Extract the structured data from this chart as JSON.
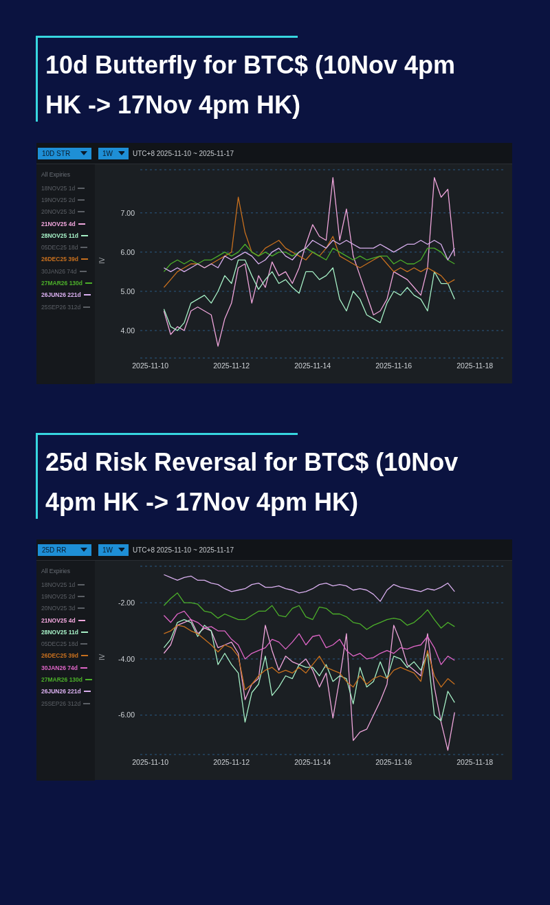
{
  "chart_data": [
    {
      "type": "line",
      "title": "10d Butterfly for BTC$ (10Nov 4pm HK -> 17Nov 4pm HK)",
      "ylabel": "IV",
      "legend_title": "All Expiries",
      "legend": "left",
      "grid": "y",
      "marker": "none",
      "line_style": "solid",
      "annotations": [
        "10D STR",
        "1W",
        "UTC+8 2025-11-10 ~ 2025-11-17"
      ],
      "x": [
        "2025-11-10T08:00",
        "2025-11-10T12:00",
        "2025-11-10T16:00",
        "2025-11-10T20:00",
        "2025-11-11T00:00",
        "2025-11-11T04:00",
        "2025-11-11T08:00",
        "2025-11-11T12:00",
        "2025-11-11T16:00",
        "2025-11-11T20:00",
        "2025-11-12T00:00",
        "2025-11-12T04:00",
        "2025-11-12T08:00",
        "2025-11-12T12:00",
        "2025-11-12T16:00",
        "2025-11-12T20:00",
        "2025-11-13T00:00",
        "2025-11-13T04:00",
        "2025-11-13T08:00",
        "2025-11-13T12:00",
        "2025-11-13T16:00",
        "2025-11-13T20:00",
        "2025-11-14T00:00",
        "2025-11-14T04:00",
        "2025-11-14T08:00",
        "2025-11-14T12:00",
        "2025-11-14T16:00",
        "2025-11-14T20:00",
        "2025-11-15T00:00",
        "2025-11-15T04:00",
        "2025-11-15T08:00",
        "2025-11-15T12:00",
        "2025-11-15T16:00",
        "2025-11-15T20:00",
        "2025-11-16T00:00",
        "2025-11-16T04:00",
        "2025-11-16T08:00",
        "2025-11-16T12:00",
        "2025-11-16T16:00",
        "2025-11-16T20:00",
        "2025-11-17T00:00",
        "2025-11-17T04:00",
        "2025-11-17T08:00",
        "2025-11-17T12:00"
      ],
      "xlim": [
        "2025-11-09T18:00",
        "2025-11-18T18:00"
      ],
      "xticks": [
        "2025-11-10",
        "2025-11-12",
        "2025-11-14",
        "2025-11-16",
        "2025-11-18"
      ],
      "ylim": [
        3.3,
        8.1
      ],
      "yticks": [
        {
          "value": 4,
          "label": "4.00"
        },
        {
          "value": 5,
          "label": "5.00"
        },
        {
          "value": 6,
          "label": "6.00"
        },
        {
          "value": 7,
          "label": "7.00"
        }
      ],
      "series": [
        {
          "name": "18NOV25 1d",
          "color": "#5c6066",
          "values": [
            null,
            null,
            null,
            null,
            null,
            null,
            null,
            null,
            null,
            null,
            null,
            null,
            null,
            null,
            null,
            null,
            null,
            null,
            null,
            null,
            null,
            null,
            null,
            null,
            null,
            null,
            null,
            null,
            null,
            null,
            null,
            null,
            null,
            null,
            null,
            null,
            null,
            null,
            null,
            null,
            null,
            null,
            null,
            null
          ]
        },
        {
          "name": "19NOV25 2d",
          "color": "#5c6066",
          "values": [
            null,
            null,
            null,
            null,
            null,
            null,
            null,
            null,
            null,
            null,
            null,
            null,
            null,
            null,
            null,
            null,
            null,
            null,
            null,
            null,
            null,
            null,
            null,
            null,
            null,
            null,
            null,
            null,
            null,
            null,
            null,
            null,
            null,
            null,
            null,
            null,
            null,
            null,
            null,
            null,
            null,
            null,
            null,
            null
          ]
        },
        {
          "name": "20NOV25 3d",
          "color": "#5c6066",
          "values": [
            null,
            null,
            null,
            null,
            null,
            null,
            null,
            null,
            null,
            null,
            null,
            null,
            null,
            null,
            null,
            null,
            null,
            null,
            null,
            null,
            null,
            null,
            null,
            null,
            null,
            null,
            null,
            null,
            null,
            null,
            null,
            null,
            null,
            null,
            null,
            null,
            null,
            null,
            null,
            null,
            null,
            null,
            null,
            null
          ]
        },
        {
          "name": "21NOV25 4d",
          "color": "#f0a6dc",
          "values": [
            4.5,
            3.9,
            4.1,
            4.0,
            4.5,
            4.6,
            4.5,
            4.4,
            3.6,
            4.3,
            4.7,
            5.6,
            5.7,
            4.7,
            5.4,
            5.1,
            5.75,
            5.4,
            5.5,
            5.2,
            5.6,
            6.2,
            6.7,
            6.4,
            6.3,
            7.9,
            6.3,
            7.1,
            5.9,
            5.4,
            4.9,
            4.4,
            4.5,
            4.8,
            5.5,
            5.4,
            5.3,
            5.1,
            4.9,
            5.6,
            7.9,
            7.4,
            7.6,
            5.9
          ]
        },
        {
          "name": "28NOV25 11d",
          "color": "#a6f0c6",
          "values": [
            4.55,
            4.1,
            4.0,
            4.2,
            4.7,
            4.8,
            4.9,
            4.7,
            5.0,
            5.4,
            5.2,
            5.8,
            5.8,
            5.4,
            5.05,
            5.3,
            5.5,
            5.2,
            5.3,
            5.1,
            4.95,
            5.5,
            5.5,
            5.3,
            5.4,
            5.6,
            4.8,
            4.5,
            5.0,
            4.8,
            4.4,
            4.3,
            4.2,
            4.7,
            5.0,
            4.9,
            5.1,
            4.9,
            4.8,
            4.5,
            5.5,
            5.2,
            5.2,
            4.8
          ]
        },
        {
          "name": "05DEC25 18d",
          "color": "#5c6066",
          "values": [
            null,
            null,
            null,
            null,
            null,
            null,
            null,
            null,
            null,
            null,
            null,
            null,
            null,
            null,
            null,
            null,
            null,
            null,
            null,
            null,
            null,
            null,
            null,
            null,
            null,
            null,
            null,
            null,
            null,
            null,
            null,
            null,
            null,
            null,
            null,
            null,
            null,
            null,
            null,
            null,
            null,
            null,
            null,
            null
          ]
        },
        {
          "name": "26DEC25 39d",
          "color": "#c8701e",
          "values": [
            5.1,
            5.3,
            5.5,
            5.6,
            5.7,
            5.7,
            5.6,
            5.7,
            5.8,
            5.9,
            6.0,
            7.4,
            6.5,
            6.0,
            5.9,
            6.1,
            6.2,
            6.3,
            6.1,
            6.0,
            5.9,
            5.8,
            6.0,
            5.9,
            6.1,
            6.4,
            5.9,
            5.8,
            5.7,
            5.6,
            5.7,
            5.8,
            5.9,
            5.7,
            5.5,
            5.6,
            5.5,
            5.6,
            5.5,
            5.6,
            5.5,
            5.4,
            5.2,
            5.3
          ]
        },
        {
          "name": "30JAN26 74d",
          "color": "#5c6066",
          "values": [
            null,
            null,
            null,
            null,
            null,
            null,
            null,
            null,
            null,
            null,
            null,
            null,
            null,
            null,
            null,
            null,
            null,
            null,
            null,
            null,
            null,
            null,
            null,
            null,
            null,
            null,
            null,
            null,
            null,
            null,
            null,
            null,
            null,
            null,
            null,
            null,
            null,
            null,
            null,
            null,
            null,
            null,
            null,
            null
          ]
        },
        {
          "name": "27MAR26 130d",
          "color": "#4cb02a",
          "values": [
            5.5,
            5.7,
            5.8,
            5.7,
            5.8,
            5.7,
            5.8,
            5.8,
            5.9,
            6.0,
            5.9,
            6.0,
            6.2,
            6.0,
            5.9,
            6.0,
            5.9,
            6.0,
            6.0,
            5.9,
            6.0,
            6.1,
            6.0,
            5.9,
            5.8,
            6.1,
            6.0,
            5.9,
            5.8,
            5.9,
            5.8,
            5.85,
            5.9,
            5.9,
            5.7,
            5.8,
            5.7,
            5.7,
            5.8,
            6.1,
            6.1,
            6.0,
            5.8,
            5.7
          ]
        },
        {
          "name": "26JUN26 221d",
          "color": "#dab0f0",
          "values": [
            5.6,
            5.5,
            5.6,
            5.5,
            5.6,
            5.7,
            5.6,
            5.7,
            5.6,
            5.9,
            5.8,
            5.9,
            6.0,
            5.9,
            5.7,
            5.8,
            6.0,
            6.1,
            5.9,
            5.8,
            6.0,
            6.1,
            6.3,
            6.2,
            6.1,
            6.3,
            6.2,
            6.3,
            6.2,
            6.1,
            6.1,
            6.1,
            6.2,
            6.1,
            6.0,
            6.1,
            6.2,
            6.2,
            6.3,
            6.2,
            6.3,
            6.2,
            5.8,
            6.1
          ]
        },
        {
          "name": "25SEP26 312d",
          "color": "#5c6066",
          "values": [
            null,
            null,
            null,
            null,
            null,
            null,
            null,
            null,
            null,
            null,
            null,
            null,
            null,
            null,
            null,
            null,
            null,
            null,
            null,
            null,
            null,
            null,
            null,
            null,
            null,
            null,
            null,
            null,
            null,
            null,
            null,
            null,
            null,
            null,
            null,
            null,
            null,
            null,
            null,
            null,
            null,
            null,
            null,
            null
          ]
        }
      ]
    },
    {
      "type": "line",
      "title": "25d Risk Reversal for BTC$ (10Nov 4pm HK -> 17Nov 4pm HK)",
      "ylabel": "IV",
      "legend_title": "All Expiries",
      "legend": "left",
      "grid": "y",
      "marker": "none",
      "line_style": "solid",
      "annotations": [
        "25D RR",
        "1W",
        "UTC+8 2025-11-10 ~ 2025-11-17"
      ],
      "x": [
        "2025-11-10T08:00",
        "2025-11-10T12:00",
        "2025-11-10T16:00",
        "2025-11-10T20:00",
        "2025-11-11T00:00",
        "2025-11-11T04:00",
        "2025-11-11T08:00",
        "2025-11-11T12:00",
        "2025-11-11T16:00",
        "2025-11-11T20:00",
        "2025-11-12T00:00",
        "2025-11-12T04:00",
        "2025-11-12T08:00",
        "2025-11-12T12:00",
        "2025-11-12T16:00",
        "2025-11-12T20:00",
        "2025-11-13T00:00",
        "2025-11-13T04:00",
        "2025-11-13T08:00",
        "2025-11-13T12:00",
        "2025-11-13T16:00",
        "2025-11-13T20:00",
        "2025-11-14T00:00",
        "2025-11-14T04:00",
        "2025-11-14T08:00",
        "2025-11-14T12:00",
        "2025-11-14T16:00",
        "2025-11-14T20:00",
        "2025-11-15T00:00",
        "2025-11-15T04:00",
        "2025-11-15T08:00",
        "2025-11-15T12:00",
        "2025-11-15T16:00",
        "2025-11-15T20:00",
        "2025-11-16T00:00",
        "2025-11-16T04:00",
        "2025-11-16T08:00",
        "2025-11-16T12:00",
        "2025-11-16T16:00",
        "2025-11-16T20:00",
        "2025-11-17T00:00",
        "2025-11-17T04:00",
        "2025-11-17T08:00",
        "2025-11-17T12:00"
      ],
      "xlim": [
        "2025-11-09T18:00",
        "2025-11-18T18:00"
      ],
      "xticks": [
        "2025-11-10",
        "2025-11-12",
        "2025-11-14",
        "2025-11-16",
        "2025-11-18"
      ],
      "ylim": [
        -7.4,
        -0.7
      ],
      "yticks": [
        {
          "value": -6,
          "label": "-6.00"
        },
        {
          "value": -4,
          "label": "-4.00"
        },
        {
          "value": -2,
          "label": "-2.00"
        }
      ],
      "series": [
        {
          "name": "18NOV25 1d",
          "color": "#5c6066",
          "values": [
            null,
            null,
            null,
            null,
            null,
            null,
            null,
            null,
            null,
            null,
            null,
            null,
            null,
            null,
            null,
            null,
            null,
            null,
            null,
            null,
            null,
            null,
            null,
            null,
            null,
            null,
            null,
            null,
            null,
            null,
            null,
            null,
            null,
            null,
            null,
            null,
            null,
            null,
            null,
            null,
            null,
            null,
            null,
            null
          ]
        },
        {
          "name": "19NOV25 2d",
          "color": "#5c6066",
          "values": [
            null,
            null,
            null,
            null,
            null,
            null,
            null,
            null,
            null,
            null,
            null,
            null,
            null,
            null,
            null,
            null,
            null,
            null,
            null,
            null,
            null,
            null,
            null,
            null,
            null,
            null,
            null,
            null,
            null,
            null,
            null,
            null,
            null,
            null,
            null,
            null,
            null,
            null,
            null,
            null,
            null,
            null,
            null,
            null
          ]
        },
        {
          "name": "20NOV25 3d",
          "color": "#5c6066",
          "values": [
            null,
            null,
            null,
            null,
            null,
            null,
            null,
            null,
            null,
            null,
            null,
            null,
            null,
            null,
            null,
            null,
            null,
            null,
            null,
            null,
            null,
            null,
            null,
            null,
            null,
            null,
            null,
            null,
            null,
            null,
            null,
            null,
            null,
            null,
            null,
            null,
            null,
            null,
            null,
            null,
            null,
            null,
            null,
            null
          ]
        },
        {
          "name": "21NOV25 4d",
          "color": "#f0a6dc",
          "values": [
            -3.8,
            -3.5,
            -2.8,
            -2.7,
            -2.6,
            -3.1,
            -2.9,
            -3.0,
            -3.6,
            -3.5,
            -3.4,
            -3.8,
            -5.45,
            -4.9,
            -4.7,
            -2.8,
            -3.7,
            -4.4,
            -3.9,
            -4.1,
            -4.2,
            -4.0,
            -4.4,
            -5.0,
            -4.5,
            -6.1,
            -4.7,
            -3.1,
            -6.9,
            -6.6,
            -6.5,
            -6.0,
            -5.5,
            -4.9,
            -2.8,
            -3.4,
            -4.2,
            -4.4,
            -4.6,
            -3.1,
            -5.0,
            -6.25,
            -7.25,
            -5.9
          ]
        },
        {
          "name": "28NOV25 11d",
          "color": "#a6f0c6",
          "values": [
            -3.6,
            -3.3,
            -2.7,
            -2.6,
            -2.7,
            -3.2,
            -2.8,
            -3.0,
            -4.2,
            -3.8,
            -4.2,
            -4.5,
            -6.25,
            -5.2,
            -4.9,
            -3.9,
            -5.3,
            -5.0,
            -4.6,
            -4.7,
            -4.2,
            -4.3,
            -4.3,
            -4.6,
            -4.2,
            -4.8,
            -4.6,
            -4.7,
            -5.6,
            -4.3,
            -5.0,
            -4.8,
            -4.1,
            -4.7,
            -3.9,
            -4.0,
            -4.3,
            -4.1,
            -4.4,
            -3.8,
            -6.0,
            -6.2,
            -5.15,
            -5.55
          ]
        },
        {
          "name": "05DEC25 18d",
          "color": "#5c6066",
          "values": [
            null,
            null,
            null,
            null,
            null,
            null,
            null,
            null,
            null,
            null,
            null,
            null,
            null,
            null,
            null,
            null,
            null,
            null,
            null,
            null,
            null,
            null,
            null,
            null,
            null,
            null,
            null,
            null,
            null,
            null,
            null,
            null,
            null,
            null,
            null,
            null,
            null,
            null,
            null,
            null,
            null,
            null,
            null,
            null
          ]
        },
        {
          "name": "26DEC25 39d",
          "color": "#c8701e",
          "values": [
            -3.1,
            -3.0,
            -2.8,
            -2.85,
            -3.0,
            -3.1,
            -3.3,
            -3.5,
            -3.75,
            -3.5,
            -3.6,
            -3.9,
            -5.1,
            -4.9,
            -4.6,
            -4.4,
            -4.3,
            -4.5,
            -4.4,
            -4.5,
            -4.3,
            -4.5,
            -4.2,
            -3.9,
            -4.3,
            -4.4,
            -4.5,
            -4.8,
            -5.0,
            -4.6,
            -4.9,
            -4.7,
            -4.6,
            -4.7,
            -4.4,
            -4.3,
            -4.4,
            -4.5,
            -4.8,
            -3.7,
            -4.6,
            -5.0,
            -4.7,
            -4.9
          ]
        },
        {
          "name": "30JAN26 74d",
          "color": "#e066c8",
          "values": [
            -2.45,
            -2.7,
            -2.4,
            -2.3,
            -2.6,
            -2.7,
            -2.9,
            -2.85,
            -3.0,
            -3.0,
            -3.3,
            -3.5,
            -4.0,
            -3.8,
            -3.7,
            -3.6,
            -3.3,
            -3.4,
            -3.65,
            -3.4,
            -3.1,
            -3.5,
            -3.2,
            -3.15,
            -3.6,
            -3.5,
            -3.3,
            -3.7,
            -3.9,
            -3.8,
            -4.0,
            -3.95,
            -3.8,
            -3.7,
            -3.8,
            -3.6,
            -3.65,
            -3.55,
            -3.5,
            -3.2,
            -3.6,
            -4.2,
            -3.9,
            -4.05
          ]
        },
        {
          "name": "27MAR26 130d",
          "color": "#4cb02a",
          "values": [
            -2.1,
            -1.85,
            -1.65,
            -2.0,
            -2.0,
            -2.05,
            -2.3,
            -2.35,
            -2.55,
            -2.4,
            -2.5,
            -2.6,
            -2.6,
            -2.45,
            -2.3,
            -2.3,
            -2.1,
            -2.45,
            -2.5,
            -2.2,
            -2.1,
            -2.5,
            -2.6,
            -2.15,
            -2.2,
            -2.4,
            -2.4,
            -2.5,
            -2.7,
            -2.75,
            -2.95,
            -2.8,
            -2.7,
            -2.6,
            -2.55,
            -2.6,
            -2.8,
            -2.7,
            -2.5,
            -2.25,
            -2.6,
            -2.9,
            -2.7,
            -2.85
          ]
        },
        {
          "name": "26JUN26 221d",
          "color": "#dab0f0",
          "values": [
            -1.0,
            -1.1,
            -1.2,
            -1.1,
            -1.05,
            -1.2,
            -1.2,
            -1.3,
            -1.35,
            -1.5,
            -1.6,
            -1.55,
            -1.5,
            -1.35,
            -1.3,
            -1.45,
            -1.45,
            -1.4,
            -1.5,
            -1.55,
            -1.65,
            -1.6,
            -1.5,
            -1.35,
            -1.3,
            -1.4,
            -1.35,
            -1.4,
            -1.55,
            -1.5,
            -1.55,
            -1.7,
            -1.95,
            -1.55,
            -1.35,
            -1.45,
            -1.5,
            -1.55,
            -1.6,
            -1.5,
            -1.55,
            -1.45,
            -1.3,
            -1.6
          ]
        },
        {
          "name": "25SEP26 312d",
          "color": "#5c6066",
          "values": [
            null,
            null,
            null,
            null,
            null,
            null,
            null,
            null,
            null,
            null,
            null,
            null,
            null,
            null,
            null,
            null,
            null,
            null,
            null,
            null,
            null,
            null,
            null,
            null,
            null,
            null,
            null,
            null,
            null,
            null,
            null,
            null,
            null,
            null,
            null,
            null,
            null,
            null,
            null,
            null,
            null,
            null,
            null,
            null
          ]
        }
      ]
    }
  ]
}
